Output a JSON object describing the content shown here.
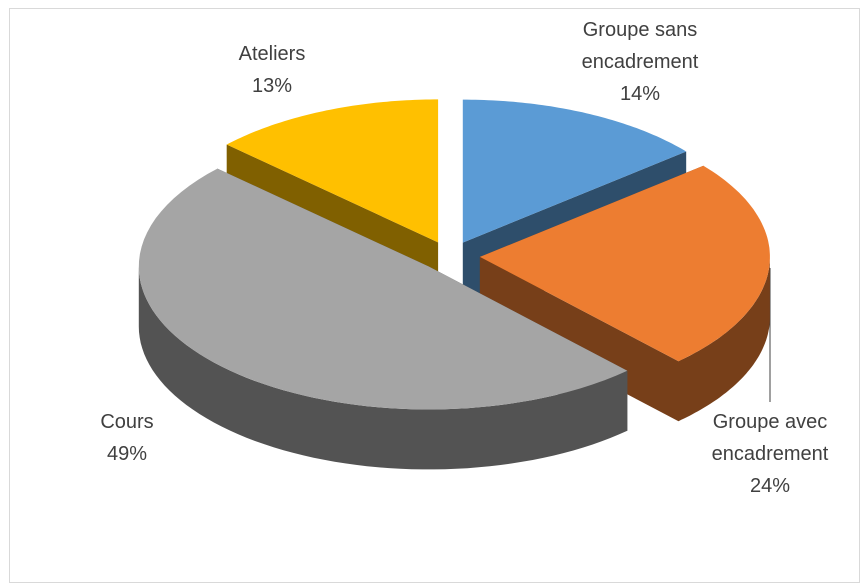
{
  "chart_data": {
    "type": "pie",
    "categories": [
      "Groupe sans encadrement",
      "Groupe avec encadrement",
      "Cours",
      "Ateliers"
    ],
    "values": [
      14,
      24,
      49,
      13
    ],
    "value_labels": [
      "14%",
      "24%",
      "49%",
      "13%"
    ],
    "colors": [
      "#5b9bd5",
      "#ed7d31",
      "#a5a5a5",
      "#ffc000"
    ]
  }
}
